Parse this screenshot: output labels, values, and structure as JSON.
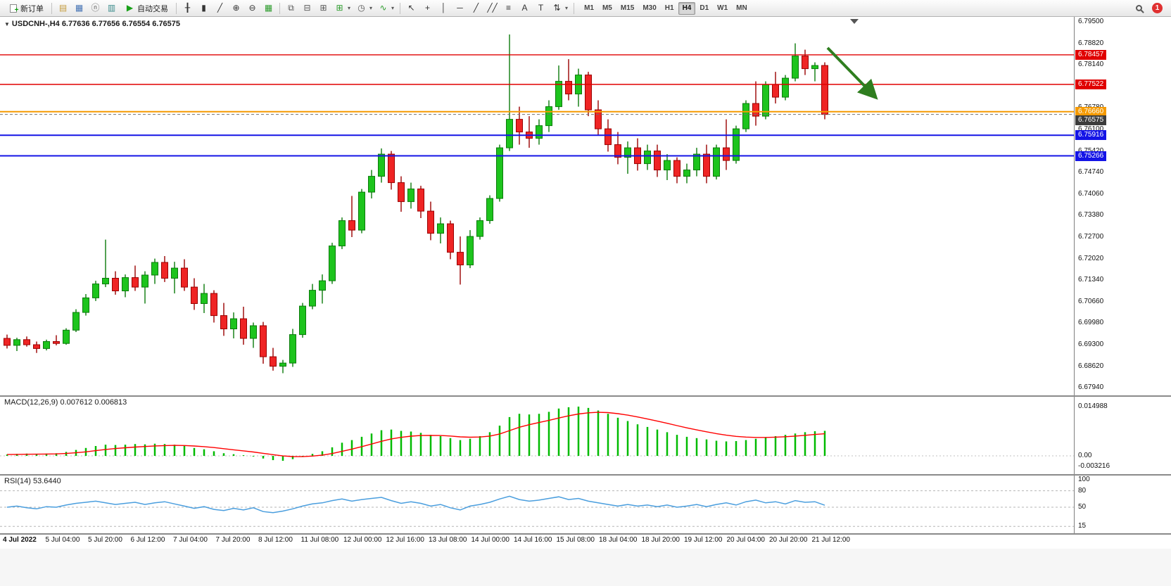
{
  "toolbar": {
    "new_order_label": "新订单",
    "autotrade_label": "自动交易",
    "caret_glyph": "▾",
    "timeframes": [
      "M1",
      "M5",
      "M15",
      "M30",
      "H1",
      "H4",
      "D1",
      "W1",
      "MN"
    ],
    "active_timeframe": "H4",
    "notification_count": "1",
    "window_icons": [
      {
        "name": "market-watch-icon",
        "glyph": "▤",
        "color": "#c49a3c"
      },
      {
        "name": "data-window-icon",
        "glyph": "▦",
        "color": "#4472b4"
      },
      {
        "name": "navigator-icon",
        "glyph": "ⓝ",
        "color": "#666666"
      },
      {
        "name": "terminal-icon",
        "glyph": "▥",
        "color": "#3c8c8c"
      }
    ],
    "chart_icons": [
      {
        "name": "bar-chart-icon",
        "glyph": "╂",
        "color": "#333333"
      },
      {
        "name": "candlestick-chart-icon",
        "glyph": "▮",
        "color": "#333333"
      },
      {
        "name": "line-chart-icon",
        "glyph": "╱",
        "color": "#333333"
      },
      {
        "name": "zoom-in-icon",
        "glyph": "⊕",
        "color": "#333333"
      },
      {
        "name": "zoom-out-icon",
        "glyph": "⊖",
        "color": "#333333"
      },
      {
        "name": "tile-windows-icon",
        "glyph": "▦",
        "color": "#2c9c2c"
      }
    ],
    "arrange_icons": [
      {
        "name": "cascade-windows-icon",
        "glyph": "⧉",
        "color": "#555555"
      },
      {
        "name": "tile-horizontal-icon",
        "glyph": "⊟",
        "color": "#555555"
      },
      {
        "name": "tile-vertical-icon",
        "glyph": "⊞",
        "color": "#555555"
      },
      {
        "name": "new-chart-icon",
        "glyph": "⊞",
        "color": "#2c9c2c",
        "dropdown": true
      },
      {
        "name": "period-icon",
        "glyph": "◷",
        "color": "#555555",
        "dropdown": true
      },
      {
        "name": "indicators-icon",
        "glyph": "∿",
        "color": "#2c9c2c",
        "dropdown": true
      }
    ],
    "tool_icons": [
      {
        "name": "cursor-icon",
        "glyph": "↖",
        "color": "#333333"
      },
      {
        "name": "crosshair-icon",
        "glyph": "+",
        "color": "#333333"
      },
      {
        "name": "vertical-line-icon",
        "glyph": "│",
        "color": "#333333"
      },
      {
        "name": "horizontal-line-icon",
        "glyph": "─",
        "color": "#333333"
      },
      {
        "name": "trendline-icon",
        "glyph": "╱",
        "color": "#333333"
      },
      {
        "name": "channel-icon",
        "glyph": "╱╱",
        "color": "#333333"
      },
      {
        "name": "fibonacci-icon",
        "glyph": "≡",
        "color": "#333333"
      },
      {
        "name": "text-icon",
        "glyph": "A",
        "color": "#333333"
      },
      {
        "name": "text-label-icon",
        "glyph": "T",
        "color": "#333333"
      },
      {
        "name": "arrows-icon",
        "glyph": "⇅",
        "color": "#333333",
        "dropdown": true
      }
    ]
  },
  "chart": {
    "title_marker_glyph": "▼",
    "title": "USDCNH-,H4 6.77636 6.77656 6.76554 6.76575"
  },
  "panels": {
    "macd_label": "MACD(12,26,9) 0.007612 0.006813",
    "rsi_label": "RSI(14) 53.6440"
  },
  "chart_data": [
    {
      "type": "candlestick",
      "symbol": "USDCNH-",
      "timeframe": "H4",
      "ohlc_current": {
        "open": 6.77636,
        "high": 6.77656,
        "low": 6.76554,
        "close": 6.76575
      },
      "y_axis_labels": [
        "6.79500",
        "6.78820",
        "6.78140",
        "6.77460",
        "6.76780",
        "6.76100",
        "6.75420",
        "6.74740",
        "6.74060",
        "6.73380",
        "6.72700",
        "6.72020",
        "6.71340",
        "6.70660",
        "6.69980",
        "6.69300",
        "6.68620",
        "6.67940"
      ],
      "x_labels": [
        "4 Jul 2022",
        "5 Jul 04:00",
        "5 Jul 20:00",
        "6 Jul 12:00",
        "7 Jul 04:00",
        "7 Jul 20:00",
        "8 Jul 12:00",
        "11 Jul 08:00",
        "12 Jul 00:00",
        "12 Jul 16:00",
        "13 Jul 08:00",
        "14 Jul 00:00",
        "14 Jul 16:00",
        "15 Jul 08:00",
        "18 Jul 04:00",
        "18 Jul 20:00",
        "19 Jul 12:00",
        "20 Jul 04:00",
        "20 Jul 20:00",
        "21 Jul 12:00"
      ],
      "h_lines": [
        {
          "price": 6.78457,
          "color": "#e00000",
          "width": 1.4
        },
        {
          "price": 6.77522,
          "color": "#e00000",
          "width": 1.4
        },
        {
          "price": 6.7666,
          "color": "#f59a00",
          "width": 2
        },
        {
          "price": 6.75916,
          "color": "#1414e6",
          "width": 2
        },
        {
          "price": 6.75266,
          "color": "#1414e6",
          "width": 2
        }
      ],
      "current_price": 6.76575,
      "current_price_badge_color": "#3c3c3c",
      "arrow_annotation": {
        "direction": "down-right",
        "color": "#2f7e1f"
      },
      "colors": {
        "up": "#1dc41d",
        "up_border": "#0b7a0b",
        "down": "#ef2424",
        "down_border": "#9a0000"
      },
      "candles": [
        [
          6.695,
          6.6962,
          6.6918,
          6.6928
        ],
        [
          6.6928,
          6.6952,
          6.691,
          6.6946
        ],
        [
          6.6946,
          6.6956,
          6.6924,
          6.693
        ],
        [
          6.693,
          6.694,
          6.6904,
          6.6918
        ],
        [
          6.6918,
          6.6946,
          6.6912,
          6.694
        ],
        [
          6.694,
          6.696,
          6.6928,
          6.6934
        ],
        [
          6.6934,
          6.6982,
          6.693,
          6.6976
        ],
        [
          6.6976,
          6.7042,
          6.697,
          6.7032
        ],
        [
          6.7032,
          6.709,
          6.7022,
          6.7078
        ],
        [
          6.7078,
          6.7132,
          6.7068,
          6.7122
        ],
        [
          6.7122,
          6.7262,
          6.7112,
          6.714
        ],
        [
          6.714,
          6.7162,
          6.7088,
          6.71
        ],
        [
          6.71,
          6.7152,
          6.708,
          6.7142
        ],
        [
          6.7142,
          6.718,
          6.71,
          6.7112
        ],
        [
          6.7112,
          6.7162,
          6.706,
          6.715
        ],
        [
          6.715,
          6.7202,
          6.7122,
          6.719
        ],
        [
          6.719,
          6.721,
          6.7128,
          6.714
        ],
        [
          6.714,
          6.7192,
          6.7092,
          6.7172
        ],
        [
          6.7172,
          6.72,
          6.71,
          6.7112
        ],
        [
          6.7112,
          6.714,
          6.704,
          6.706
        ],
        [
          6.706,
          6.7122,
          6.703,
          6.7092
        ],
        [
          6.7092,
          6.7102,
          6.7,
          6.7022
        ],
        [
          6.7022,
          6.7062,
          6.6958,
          6.698
        ],
        [
          6.698,
          6.7032,
          6.695,
          6.7012
        ],
        [
          6.7012,
          6.705,
          6.693,
          6.695
        ],
        [
          6.695,
          6.7,
          6.692,
          6.699
        ],
        [
          6.699,
          6.7002,
          6.687,
          6.6892
        ],
        [
          6.6892,
          6.692,
          6.6848,
          6.6862
        ],
        [
          6.6862,
          6.6882,
          6.684,
          6.6872
        ],
        [
          6.6872,
          6.698,
          6.686,
          6.6962
        ],
        [
          6.6962,
          6.7062,
          6.6952,
          6.7052
        ],
        [
          6.7052,
          6.7122,
          6.7042,
          6.7102
        ],
        [
          6.7102,
          6.7152,
          6.706,
          6.7132
        ],
        [
          6.7132,
          6.7252,
          6.7122,
          6.7242
        ],
        [
          6.7242,
          6.7332,
          6.7232,
          6.7322
        ],
        [
          6.7322,
          6.74,
          6.727,
          6.7292
        ],
        [
          6.7292,
          6.7422,
          6.7282,
          6.7412
        ],
        [
          6.7412,
          6.7482,
          6.7392,
          6.7462
        ],
        [
          6.7462,
          6.755,
          6.7442,
          6.7532
        ],
        [
          6.7532,
          6.7542,
          6.742,
          6.7442
        ],
        [
          6.7442,
          6.7462,
          6.735,
          6.7382
        ],
        [
          6.7382,
          6.7442,
          6.736,
          6.7422
        ],
        [
          6.7422,
          6.7432,
          6.733,
          6.7352
        ],
        [
          6.7352,
          6.7382,
          6.726,
          6.7282
        ],
        [
          6.7282,
          6.7332,
          6.725,
          6.7312
        ],
        [
          6.7312,
          6.7322,
          6.72,
          6.7222
        ],
        [
          6.7222,
          6.7272,
          6.712,
          6.7182
        ],
        [
          6.7182,
          6.7292,
          6.7172,
          6.7272
        ],
        [
          6.7272,
          6.7332,
          6.7262,
          6.7322
        ],
        [
          6.7322,
          6.7402,
          6.7312,
          6.7392
        ],
        [
          6.7392,
          6.7562,
          6.7382,
          6.7552
        ],
        [
          6.7552,
          6.791,
          6.7542,
          6.7642
        ],
        [
          6.7642,
          6.7682,
          6.7562,
          6.7602
        ],
        [
          6.7602,
          6.7652,
          6.7552,
          6.7582
        ],
        [
          6.7582,
          6.7642,
          6.7562,
          6.7622
        ],
        [
          6.7622,
          6.7702,
          6.7602,
          6.7682
        ],
        [
          6.7682,
          6.7812,
          6.7672,
          6.7762
        ],
        [
          6.7762,
          6.7832,
          6.7702,
          6.7722
        ],
        [
          6.7722,
          6.7802,
          6.7682,
          6.7782
        ],
        [
          6.7782,
          6.7792,
          6.7652,
          6.7672
        ],
        [
          6.7672,
          6.7702,
          6.7592,
          6.7612
        ],
        [
          6.7612,
          6.7642,
          6.754,
          6.7562
        ],
        [
          6.7562,
          6.7602,
          6.75,
          6.7522
        ],
        [
          6.7522,
          6.7572,
          6.747,
          6.7552
        ],
        [
          6.7552,
          6.7582,
          6.748,
          6.7502
        ],
        [
          6.7502,
          6.7562,
          6.7482,
          6.7542
        ],
        [
          6.7542,
          6.7562,
          6.746,
          6.7482
        ],
        [
          6.7482,
          6.7532,
          6.745,
          6.7512
        ],
        [
          6.7512,
          6.7522,
          6.744,
          6.7462
        ],
        [
          6.7462,
          6.7502,
          6.744,
          6.7482
        ],
        [
          6.7482,
          6.7552,
          6.7462,
          6.7532
        ],
        [
          6.7532,
          6.7562,
          6.744,
          6.7462
        ],
        [
          6.7462,
          6.7562,
          6.7452,
          6.7552
        ],
        [
          6.7552,
          6.7642,
          6.7482,
          6.7512
        ],
        [
          6.7512,
          6.7622,
          6.7502,
          6.7612
        ],
        [
          6.7612,
          6.7702,
          6.7602,
          6.7692
        ],
        [
          6.7692,
          6.7762,
          6.7622,
          6.7652
        ],
        [
          6.7652,
          6.7762,
          6.7642,
          6.7752
        ],
        [
          6.7752,
          6.7792,
          6.7692,
          6.7712
        ],
        [
          6.7712,
          6.7782,
          6.7702,
          6.7772
        ],
        [
          6.7772,
          6.7882,
          6.7762,
          6.7842
        ],
        [
          6.7842,
          6.7862,
          6.7782,
          6.7802
        ],
        [
          6.7802,
          6.7822,
          6.7762,
          6.7812
        ],
        [
          6.7812,
          6.7822,
          6.7642,
          6.76575
        ]
      ]
    },
    {
      "type": "bar",
      "name": "MACD(12,26,9)",
      "value": 0.007612,
      "signal_value": 0.006813,
      "y_axis_labels": [
        "0.014988",
        "0.00",
        "-0.003216"
      ],
      "histogram_color": "#00bb00",
      "signal_color": "#ff0000",
      "values": [
        0.0004,
        0.0006,
        0.0007,
        0.0006,
        0.0007,
        0.0008,
        0.0012,
        0.0018,
        0.0024,
        0.003,
        0.0034,
        0.0033,
        0.0034,
        0.0036,
        0.0035,
        0.0037,
        0.0036,
        0.0034,
        0.003,
        0.0024,
        0.002,
        0.0014,
        0.0008,
        0.0005,
        0.0002,
        -0.0002,
        -0.0008,
        -0.0013,
        -0.0015,
        -0.001,
        -0.0003,
        0.0006,
        0.0014,
        0.0026,
        0.004,
        0.0048,
        0.0058,
        0.0068,
        0.0078,
        0.008,
        0.0076,
        0.0074,
        0.007,
        0.0064,
        0.006,
        0.0054,
        0.0048,
        0.0052,
        0.006,
        0.0072,
        0.0092,
        0.0118,
        0.0128,
        0.0126,
        0.0128,
        0.0134,
        0.0144,
        0.0148,
        0.014988,
        0.0146,
        0.0138,
        0.0128,
        0.0116,
        0.0106,
        0.0096,
        0.0088,
        0.008,
        0.0072,
        0.0064,
        0.0058,
        0.0054,
        0.005,
        0.0046,
        0.0044,
        0.0045,
        0.0048,
        0.0052,
        0.0056,
        0.006,
        0.0064,
        0.0068,
        0.0072,
        0.0075,
        0.007612
      ]
    },
    {
      "type": "line",
      "name": "RSI(14)",
      "value": 53.644,
      "y_axis_labels": [
        "100",
        "80",
        "50",
        "15"
      ],
      "levels": [
        80,
        50,
        15
      ],
      "line_color": "#4a9ede",
      "values": [
        50,
        52,
        49,
        47,
        51,
        50,
        54,
        57,
        59,
        61,
        58,
        55,
        57,
        59,
        55,
        58,
        60,
        56,
        52,
        48,
        51,
        46,
        44,
        48,
        45,
        49,
        42,
        40,
        43,
        47,
        52,
        56,
        58,
        62,
        65,
        61,
        64,
        66,
        68,
        62,
        57,
        60,
        57,
        52,
        55,
        49,
        45,
        52,
        55,
        59,
        65,
        70,
        64,
        61,
        63,
        66,
        69,
        64,
        66,
        61,
        58,
        55,
        52,
        55,
        52,
        54,
        51,
        54,
        50,
        52,
        55,
        51,
        55,
        58,
        54,
        60,
        63,
        58,
        60,
        56,
        62,
        59,
        60,
        53.644
      ]
    }
  ]
}
